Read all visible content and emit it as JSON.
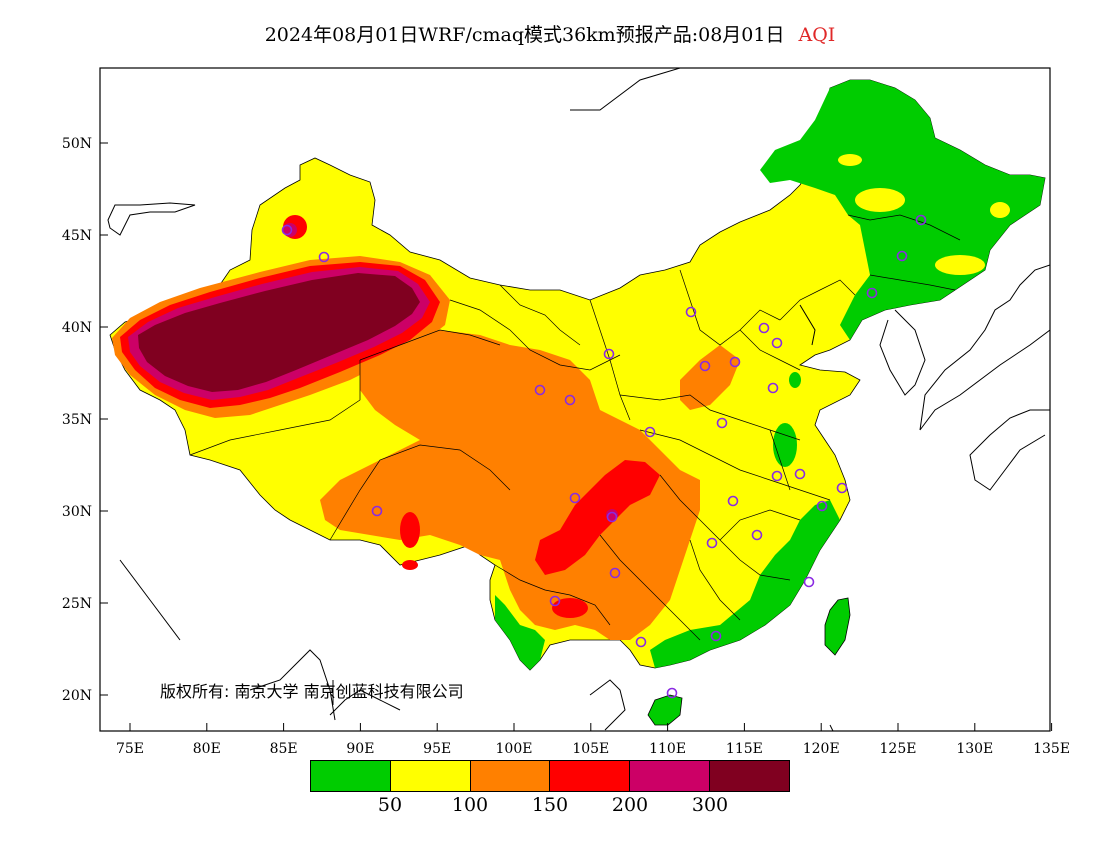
{
  "title": {
    "main": "2024年08月01日WRF/cmaq模式36km预报产品:08月01日",
    "variable": "AQI"
  },
  "axes": {
    "x_ticks": [
      "75E",
      "80E",
      "85E",
      "90E",
      "95E",
      "100E",
      "105E",
      "110E",
      "115E",
      "120E",
      "125E",
      "130E",
      "135E"
    ],
    "y_ticks": [
      "50N",
      "45N",
      "40N",
      "35N",
      "30N",
      "25N",
      "20N"
    ]
  },
  "copyright": "版权所有: 南京大学  南京创蓝科技有限公司",
  "legend": {
    "colors": [
      "#00cc00",
      "#ffff00",
      "#ff8000",
      "#ff0000",
      "#cc0066",
      "#800020"
    ],
    "labels": [
      "50",
      "100",
      "150",
      "200",
      "300"
    ]
  },
  "colors": {
    "green": "#00cc00",
    "yellow": "#ffff00",
    "orange": "#ff8000",
    "red": "#ff0000",
    "magenta": "#cc0066",
    "maroon": "#800020",
    "station_marker": "#8a2be2"
  }
}
